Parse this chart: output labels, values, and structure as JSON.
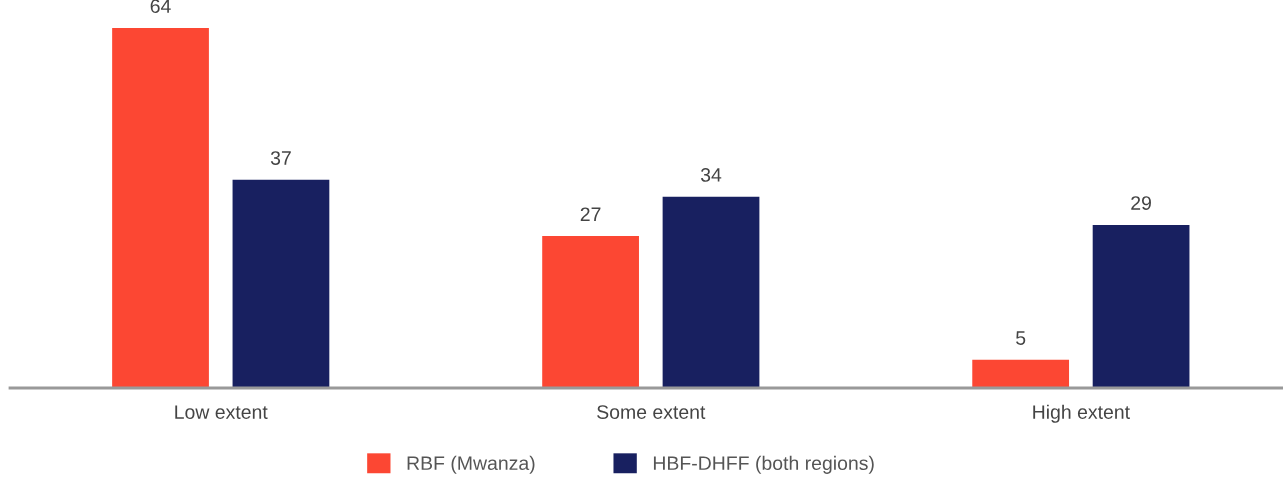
{
  "chart_data": {
    "type": "bar",
    "categories": [
      "Low extent",
      "Some extent",
      "High extent"
    ],
    "series": [
      {
        "name": "RBF (Mwanza)",
        "color": "#fc4733",
        "values": [
          64,
          27,
          5
        ]
      },
      {
        "name": "HBF-DHFF (both regions)",
        "color": "#182060",
        "values": [
          37,
          34,
          29
        ]
      }
    ],
    "data_labels": true,
    "legend": "bottom",
    "grid": false
  }
}
